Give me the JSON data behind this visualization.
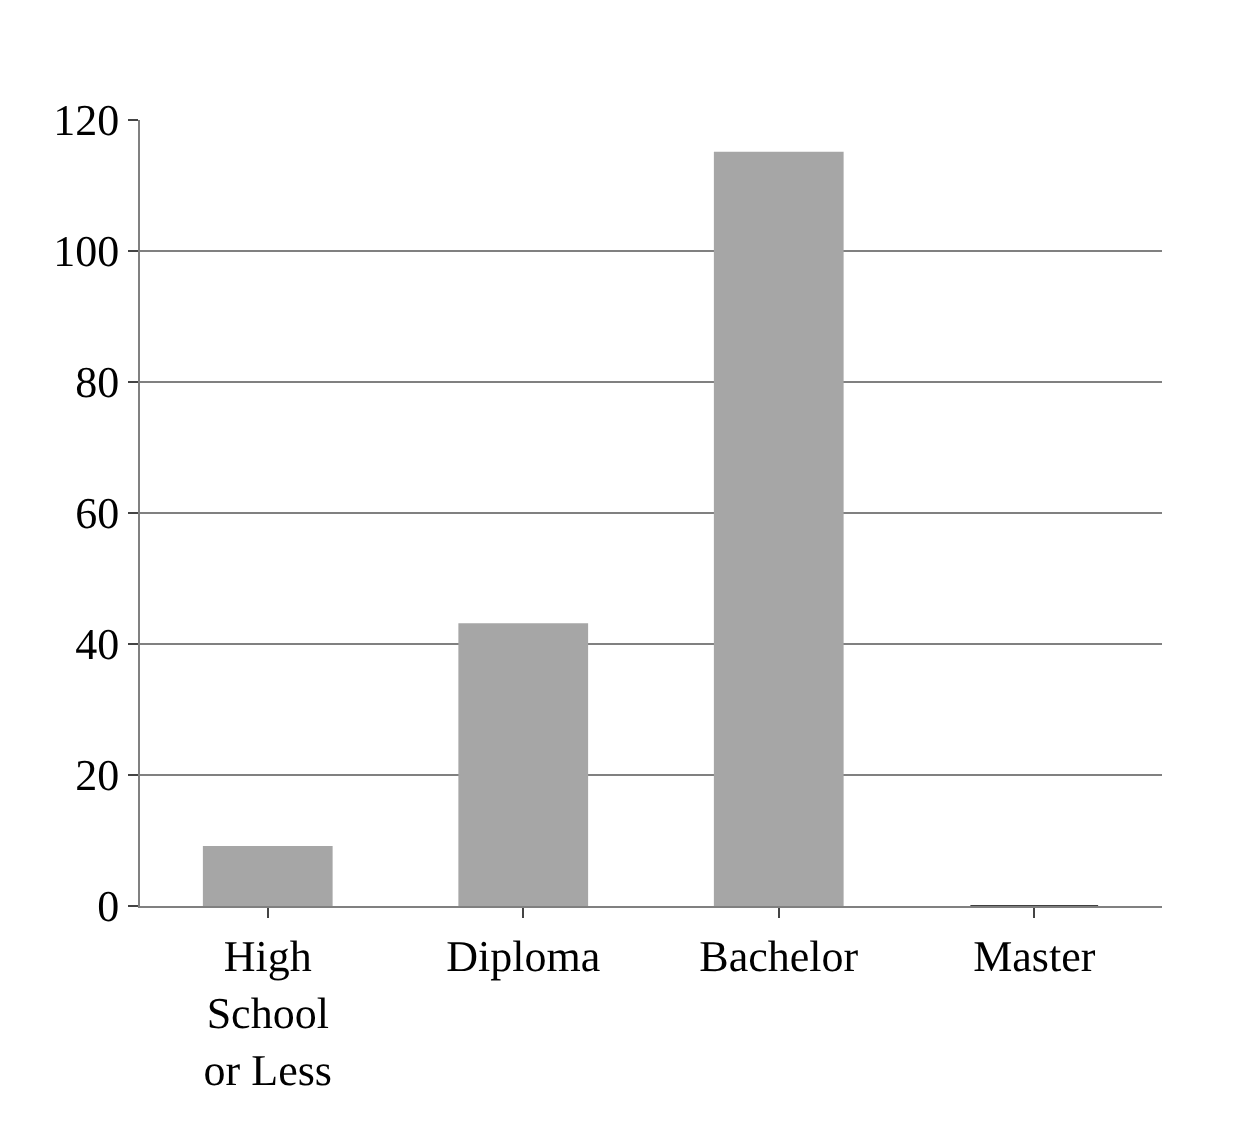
{
  "chart_data": {
    "type": "bar",
    "categories": [
      "High School or Less",
      "Diploma",
      "Bachelor",
      "Master"
    ],
    "values": [
      9,
      43,
      115,
      0
    ],
    "colors": [
      "#a6a6a6",
      "#a6a6a6",
      "#a6a6a6",
      "#404040"
    ],
    "ylim": [
      0,
      120
    ],
    "yticks": [
      0,
      20,
      40,
      60,
      80,
      100,
      120
    ],
    "grid": "y"
  }
}
